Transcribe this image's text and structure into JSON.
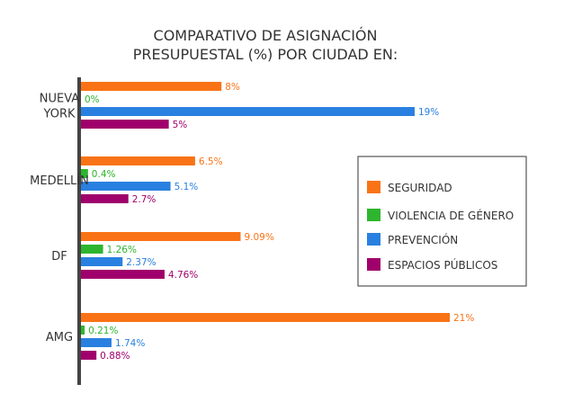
{
  "chart_data": {
    "type": "bar",
    "orientation": "horizontal",
    "title": "COMPARATIVO DE ASIGNACIÓN PRESUPUESTAL (%) POR CIUDAD EN:",
    "title_lines": [
      "COMPARATIVO DE ASIGNACIÓN",
      "PRESUPUESTAL (%) POR CIUDAD EN:"
    ],
    "categories": [
      "NUEVA YORK",
      "MEDELLÍN",
      "DF",
      "AMG"
    ],
    "category_lines": [
      [
        "NUEVA",
        "YORK"
      ],
      [
        "MEDELLÍN"
      ],
      [
        "DF"
      ],
      [
        "AMG"
      ]
    ],
    "series": [
      {
        "name": "SEGURIDAD",
        "color": "#f97316",
        "values": [
          8,
          6.5,
          9.09,
          21
        ],
        "labels": [
          "8%",
          "6.5%",
          "9.09%",
          "21%"
        ]
      },
      {
        "name": "VIOLENCIA DE GÉNERO",
        "color": "#2eb52e",
        "values": [
          0,
          0.4,
          1.26,
          0.21
        ],
        "labels": [
          "0%",
          "0.4%",
          "1.26%",
          "0.21%"
        ]
      },
      {
        "name": "PREVENCIÓN",
        "color": "#2a80e0",
        "values": [
          19,
          5.1,
          2.37,
          1.74
        ],
        "labels": [
          "19%",
          "5.1%",
          "2.37%",
          "1.74%"
        ]
      },
      {
        "name": "ESPACIOS PÚBLICOS",
        "color": "#a0006b",
        "values": [
          5,
          2.7,
          4.76,
          0.88
        ],
        "labels": [
          "5%",
          "2.7%",
          "4.76%",
          "0.88%"
        ]
      }
    ],
    "xlim": [
      0,
      21
    ],
    "grid": false,
    "legend_placement": "right"
  }
}
